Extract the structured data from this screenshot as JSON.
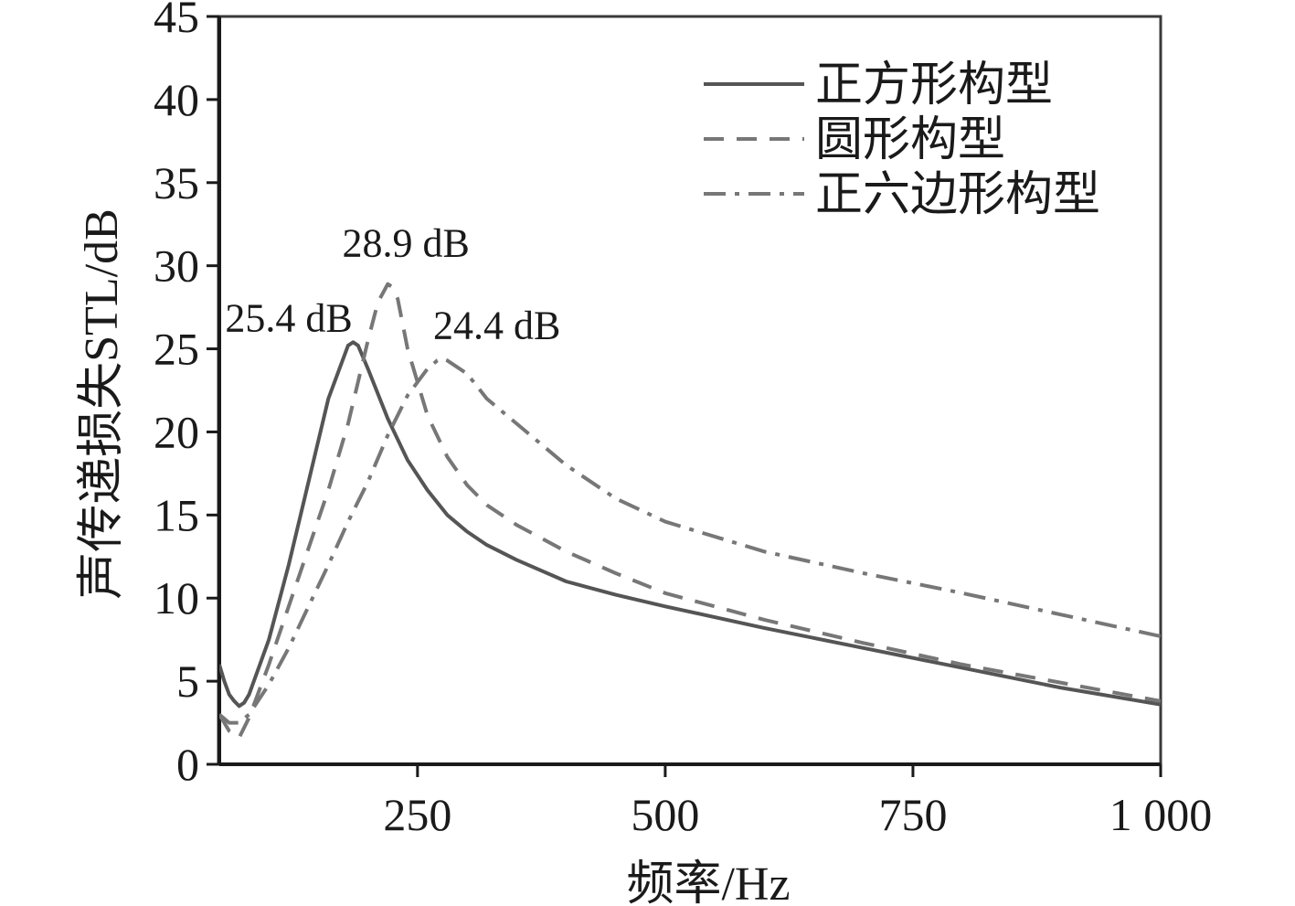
{
  "chart_data": {
    "type": "line",
    "title": "",
    "xlabel": "频率/Hz",
    "ylabel": "声传递损失STL/dB",
    "xlim": [
      50,
      1000
    ],
    "ylim": [
      0,
      45
    ],
    "xticks": [
      250,
      500,
      750,
      1000
    ],
    "xtick_labels": [
      "250",
      "500",
      "750",
      "1 000"
    ],
    "yticks": [
      0,
      5,
      10,
      15,
      20,
      25,
      30,
      35,
      40,
      45
    ],
    "ytick_labels": [
      "0",
      "5",
      "10",
      "15",
      "20",
      "25",
      "30",
      "35",
      "40",
      "45"
    ],
    "grid": false,
    "legend_position": "top-right",
    "series": [
      {
        "name": "正方形构型",
        "style": "solid",
        "color": "#555555",
        "x": [
          50,
          55,
          60,
          65,
          70,
          75,
          80,
          100,
          120,
          140,
          160,
          180,
          185,
          190,
          200,
          220,
          240,
          260,
          280,
          300,
          320,
          350,
          400,
          450,
          500,
          600,
          700,
          800,
          900,
          1000
        ],
        "y": [
          6.0,
          5.0,
          4.2,
          3.8,
          3.5,
          3.7,
          4.2,
          7.5,
          12.0,
          17.0,
          22.0,
          25.2,
          25.4,
          25.2,
          23.8,
          20.8,
          18.3,
          16.5,
          15.0,
          14.0,
          13.2,
          12.3,
          11.0,
          10.2,
          9.5,
          8.2,
          7.0,
          5.8,
          4.6,
          3.6
        ]
      },
      {
        "name": "圆形构型",
        "style": "dashed",
        "color": "#777777",
        "x": [
          50,
          60,
          70,
          80,
          100,
          120,
          140,
          160,
          180,
          200,
          210,
          220,
          225,
          230,
          240,
          260,
          280,
          300,
          320,
          350,
          400,
          450,
          500,
          600,
          700,
          800,
          900,
          1000
        ],
        "y": [
          3.0,
          2.0,
          1.6,
          2.8,
          6.0,
          9.5,
          13.0,
          16.5,
          20.5,
          25.5,
          27.8,
          28.9,
          28.7,
          28.0,
          25.0,
          21.0,
          18.5,
          16.8,
          15.6,
          14.4,
          12.8,
          11.5,
          10.3,
          8.7,
          7.3,
          6.0,
          4.9,
          3.8
        ]
      },
      {
        "name": "正六边形构型",
        "style": "dashdot",
        "color": "#777777",
        "x": [
          50,
          60,
          70,
          80,
          100,
          120,
          140,
          160,
          180,
          200,
          220,
          240,
          260,
          270,
          275,
          280,
          300,
          320,
          350,
          400,
          450,
          500,
          600,
          700,
          800,
          900,
          1000
        ],
        "y": [
          3.0,
          2.5,
          2.5,
          3.0,
          4.8,
          7.0,
          9.5,
          12.0,
          14.6,
          17.0,
          19.8,
          22.2,
          23.8,
          24.3,
          24.4,
          24.3,
          23.5,
          22.0,
          20.5,
          18.0,
          16.0,
          14.6,
          12.8,
          11.5,
          10.3,
          9.0,
          7.7
        ]
      }
    ],
    "annotations": [
      {
        "text": "25.4 dB",
        "x": 185,
        "y": 25.4
      },
      {
        "text": "28.9 dB",
        "x": 222,
        "y": 28.9
      },
      {
        "text": "24.4 dB",
        "x": 275,
        "y": 24.4
      }
    ]
  }
}
